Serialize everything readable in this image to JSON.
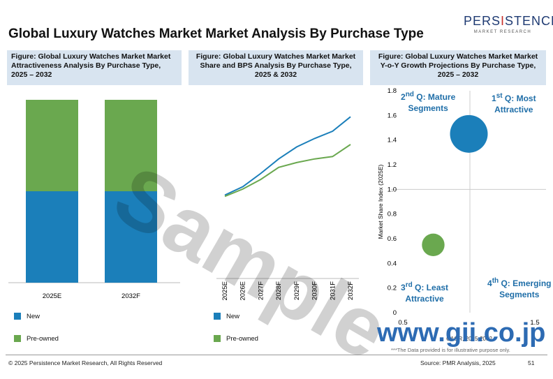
{
  "logo": {
    "brand_pre": "PERS",
    "brand_hl": "I",
    "brand_post": "STENCE",
    "sub": "MARKET RESEARCH"
  },
  "page_title": "Global Luxury Watches Market Market Analysis By Purchase Type",
  "figures": {
    "fig1_title": "Figure: Global Luxury Watches Market  Market Attractiveness Analysis By Purchase Type, 2025 – 2032",
    "fig2_title": "Figure: Global Luxury Watches Market  Market Share and BPS Analysis By Purchase Type, 2025 & 2032",
    "fig3_title": "Figure: Global Luxury Watches Market  Market Y-o-Y Growth Projections By Purchase Type, 2025 – 2032"
  },
  "colors": {
    "new": "#1b7fba",
    "preowned": "#6aa84f",
    "header_bg": "#d8e4f0",
    "quad_text": "#1f6ea8"
  },
  "legend": {
    "new": "New",
    "preowned": "Pre-owned"
  },
  "quadrants": {
    "q2_sup": "nd",
    "q2_pre": "2",
    "q2_main": " Q: Mature",
    "q2_line2": "Segments",
    "q1_sup": "st",
    "q1_pre": "1",
    "q1_main": " Q: Most",
    "q1_line2": "Attractive",
    "q3_sup": "rd",
    "q3_pre": "3",
    "q3_main": " Q: Least",
    "q3_line2": "Attractive",
    "q4_sup": "th",
    "q4_pre": "4",
    "q4_main": " Q: Emerging",
    "q4_line2": "Segments"
  },
  "chart_data": [
    {
      "type": "bar",
      "stacked": true,
      "categories": [
        "2025E",
        "2032F"
      ],
      "series": [
        {
          "name": "New",
          "values": [
            50,
            50
          ]
        },
        {
          "name": "Pre-owned",
          "values": [
            50,
            50
          ]
        }
      ]
    },
    {
      "type": "line",
      "x": [
        "2025E",
        "2026E",
        "2027F",
        "2028F",
        "2029F",
        "2030F",
        "2031F",
        "2032F"
      ],
      "series": [
        {
          "name": "New",
          "values": [
            0.85,
            0.92,
            1.03,
            1.15,
            1.25,
            1.32,
            1.38,
            1.5
          ]
        },
        {
          "name": "Pre-owned",
          "values": [
            0.84,
            0.9,
            0.98,
            1.08,
            1.12,
            1.15,
            1.17,
            1.27
          ]
        }
      ],
      "ylim": [
        0.5,
        1.6
      ]
    },
    {
      "type": "scatter",
      "ylabel": "Market Share Index (2025E)",
      "xlabel": "CAGR, 2025-2032",
      "xlim": [
        0.5,
        1.5
      ],
      "ylim": [
        0,
        1.8
      ],
      "xticks": [
        "0.5",
        "1.5"
      ],
      "yticks": [
        "0",
        "0.2",
        "0.4",
        "0.6",
        "0.8",
        "1.0",
        "1.2",
        "1.4",
        "1.6",
        "1.8"
      ],
      "points": [
        {
          "name": "New",
          "x": 1.0,
          "y": 1.45,
          "size": 1.0
        },
        {
          "name": "Pre-owned",
          "x": 0.73,
          "y": 0.55,
          "size": 0.6
        }
      ]
    }
  ],
  "footer": {
    "copyright": "© 2025 Persistence Market Research, All Rights Reserved",
    "source": "Source: PMR Analysis, 2025",
    "page": "51",
    "note": "***The Data provided is for illustrative purpose only."
  },
  "watermark": {
    "sample": "Sample",
    "site": "www.gii.co.jp"
  }
}
